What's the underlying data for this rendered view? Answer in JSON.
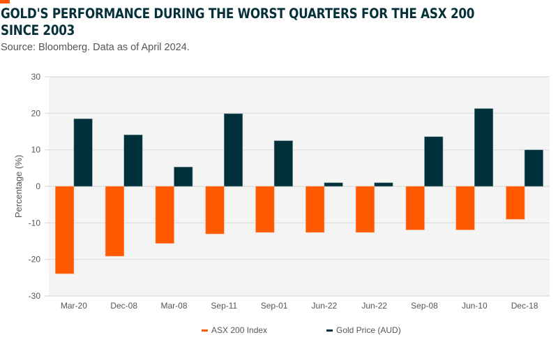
{
  "header": {
    "title_line1": "GOLD'S PERFORMANCE DURING THE WORST QUARTERS FOR THE ASX 200",
    "title_line2": "SINCE 2003",
    "subtitle": "Source: Bloomberg. Data as of April 2024."
  },
  "colors": {
    "accent": "#ff5a00",
    "asx": "#ff5a00",
    "gold": "#00303a",
    "plot_bg": "#f4f4f4",
    "grid": "#dcdcdc"
  },
  "chart_data": {
    "type": "bar",
    "title": "GOLD'S PERFORMANCE DURING THE WORST QUARTERS FOR THE ASX 200 SINCE 2003",
    "subtitle": "Source: Bloomberg. Data as of April 2024.",
    "xlabel": "",
    "ylabel": "Percentage (%)",
    "ylim": [
      -30,
      30
    ],
    "yticks": [
      30,
      20,
      10,
      0,
      -10,
      -20,
      -30
    ],
    "grid": true,
    "legend_position": "bottom",
    "categories": [
      "Mar-20",
      "Dec-08",
      "Mar-08",
      "Sep-11",
      "Sep-01",
      "Jun-22",
      "Jun-22",
      "Sep-08",
      "Jun-10",
      "Dec-18"
    ],
    "series": [
      {
        "name": "ASX 200 Index",
        "values": [
          -23.9,
          -19.1,
          -15.6,
          -13.0,
          -12.6,
          -12.6,
          -12.6,
          -11.9,
          -11.9,
          -9.0
        ]
      },
      {
        "name": "Gold Price (AUD)",
        "values": [
          18.5,
          14.1,
          5.3,
          19.9,
          12.5,
          1.0,
          1.0,
          13.6,
          21.3,
          10.0
        ]
      }
    ]
  }
}
